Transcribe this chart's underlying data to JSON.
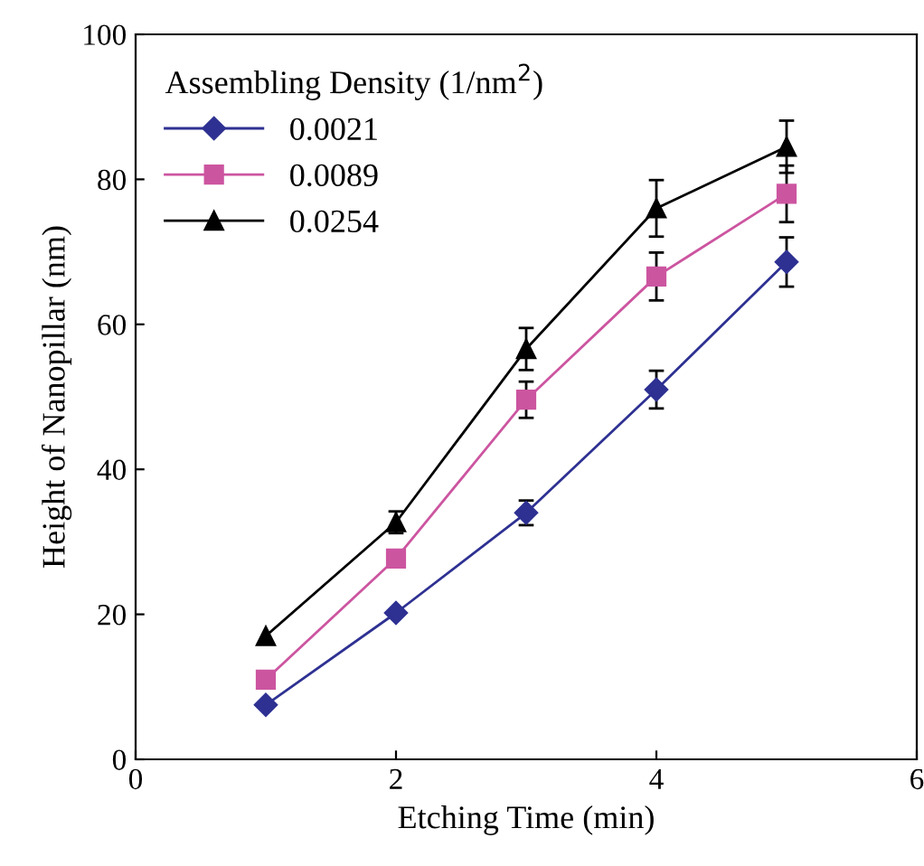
{
  "chart_data": {
    "type": "line",
    "xlabel": "Etching Time (min)",
    "ylabel": "Height of Nanopillar (nm)",
    "legend_title": "Assembling Density (1/nm$^{2}$)",
    "x": [
      1,
      2,
      3,
      4,
      5
    ],
    "series": [
      {
        "name": "0.0021",
        "color": "#2e3192",
        "marker": "diamond",
        "values": [
          7.5,
          20.2,
          34,
          51,
          68.6
        ],
        "errors": [
          null,
          null,
          1.7,
          2.6,
          3.4
        ]
      },
      {
        "name": "0.0089",
        "color": "#cc55a0",
        "marker": "square",
        "values": [
          11,
          27.7,
          49.6,
          66.6,
          78
        ],
        "errors": [
          null,
          null,
          2.5,
          3.3,
          3.9
        ]
      },
      {
        "name": "0.0254",
        "color": "#000000",
        "marker": "triangle",
        "values": [
          17,
          32.7,
          56.6,
          76,
          84.5
        ],
        "errors": [
          null,
          1.5,
          2.9,
          3.9,
          3.6
        ]
      }
    ],
    "xlim": [
      0,
      6
    ],
    "xticks": [
      0,
      2,
      4,
      6
    ],
    "ylim": [
      0,
      100
    ],
    "yticks": [
      0,
      20,
      40,
      60,
      80,
      100
    ],
    "grid": false,
    "legend": "top left"
  }
}
